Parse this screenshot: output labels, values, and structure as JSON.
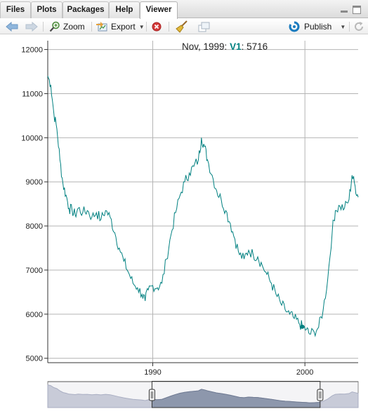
{
  "tabs": [
    {
      "label": "Files",
      "active": false
    },
    {
      "label": "Plots",
      "active": false
    },
    {
      "label": "Packages",
      "active": false
    },
    {
      "label": "Help",
      "active": false
    },
    {
      "label": "Viewer",
      "active": true
    }
  ],
  "window_controls": [
    "minimize-icon",
    "maximize-icon"
  ],
  "toolbar": {
    "back_icon": "arrow-left-icon",
    "forward_icon": "arrow-right-icon",
    "zoom_label": "Zoom",
    "export_label": "Export",
    "stop_icon": "stop-icon",
    "clear_icon": "broom-icon",
    "popout_icon": "popout-icon",
    "publish_label": "Publish",
    "refresh_icon": "refresh-icon"
  },
  "legend": {
    "date": "Nov, 1999:",
    "series": "V1",
    "value": ": 5716"
  },
  "colors": {
    "series": "#008080",
    "grid": "#b4b4b4",
    "navigator_fill": "#c8cbd8",
    "navigator_selected": "#8d97ac",
    "accent": "#1a7bbf"
  },
  "chart_data": {
    "type": "line",
    "series": [
      {
        "name": "V1"
      }
    ],
    "x_ticks": [
      "1990",
      "2000"
    ],
    "y_ticks": [
      5000,
      6000,
      7000,
      8000,
      9000,
      10000,
      11000,
      12000
    ],
    "xlim": [
      1983.1,
      2003.5
    ],
    "ylim": [
      4900,
      12200
    ],
    "grid": true,
    "highlight": {
      "x": 1999.83,
      "y": 5716
    },
    "navigator_window": [
      1989.95,
      2001.0
    ],
    "points": [
      [
        1983.1,
        11400
      ],
      [
        1983.3,
        11200
      ],
      [
        1983.5,
        10550
      ],
      [
        1983.7,
        10200
      ],
      [
        1983.9,
        9500
      ],
      [
        1984.1,
        8950
      ],
      [
        1984.3,
        8700
      ],
      [
        1984.5,
        8400
      ],
      [
        1984.7,
        8350
      ],
      [
        1984.9,
        8250
      ],
      [
        1985.1,
        8400
      ],
      [
        1985.4,
        8300
      ],
      [
        1985.7,
        8350
      ],
      [
        1986.0,
        8200
      ],
      [
        1986.3,
        8300
      ],
      [
        1986.6,
        8150
      ],
      [
        1986.9,
        8350
      ],
      [
        1987.2,
        8200
      ],
      [
        1987.5,
        7850
      ],
      [
        1987.8,
        7500
      ],
      [
        1988.1,
        7200
      ],
      [
        1988.4,
        6950
      ],
      [
        1988.7,
        6700
      ],
      [
        1989.0,
        6600
      ],
      [
        1989.3,
        6450
      ],
      [
        1989.5,
        6300
      ],
      [
        1989.7,
        6550
      ],
      [
        1990.0,
        6650
      ],
      [
        1990.3,
        6600
      ],
      [
        1990.6,
        6700
      ],
      [
        1990.9,
        7250
      ],
      [
        1991.2,
        7800
      ],
      [
        1991.5,
        8300
      ],
      [
        1991.8,
        8700
      ],
      [
        1992.1,
        9000
      ],
      [
        1992.4,
        9200
      ],
      [
        1992.7,
        9350
      ],
      [
        1993.0,
        9500
      ],
      [
        1993.2,
        10000
      ],
      [
        1993.4,
        9800
      ],
      [
        1993.6,
        9500
      ],
      [
        1993.9,
        9150
      ],
      [
        1994.2,
        8800
      ],
      [
        1994.5,
        8600
      ],
      [
        1994.8,
        8350
      ],
      [
        1995.1,
        8050
      ],
      [
        1995.4,
        7700
      ],
      [
        1995.7,
        7350
      ],
      [
        1996.0,
        7250
      ],
      [
        1996.3,
        7450
      ],
      [
        1996.6,
        7350
      ],
      [
        1996.9,
        7300
      ],
      [
        1997.2,
        7100
      ],
      [
        1997.5,
        6900
      ],
      [
        1997.8,
        6700
      ],
      [
        1998.1,
        6450
      ],
      [
        1998.4,
        6250
      ],
      [
        1998.7,
        6100
      ],
      [
        1999.0,
        6000
      ],
      [
        1999.3,
        5900
      ],
      [
        1999.6,
        5800
      ],
      [
        1999.83,
        5716
      ],
      [
        2000.1,
        5650
      ],
      [
        2000.3,
        5550
      ],
      [
        2000.6,
        5600
      ],
      [
        2000.9,
        5700
      ],
      [
        2001.2,
        6100
      ],
      [
        2001.5,
        6800
      ],
      [
        2001.8,
        7900
      ],
      [
        2002.0,
        8350
      ],
      [
        2002.3,
        8450
      ],
      [
        2002.6,
        8400
      ],
      [
        2002.9,
        8600
      ],
      [
        2003.1,
        9150
      ],
      [
        2003.3,
        8900
      ],
      [
        2003.5,
        8650
      ]
    ]
  }
}
